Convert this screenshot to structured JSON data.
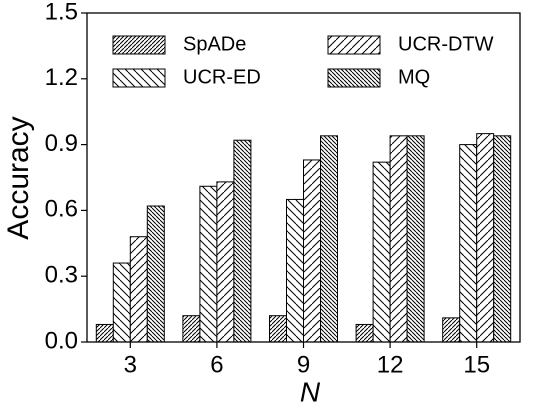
{
  "chart_data": {
    "type": "bar",
    "xlabel": "N",
    "ylabel": "Accuracy",
    "categories": [
      "3",
      "6",
      "9",
      "12",
      "15"
    ],
    "series": [
      {
        "name": "SpADe",
        "color": "#000000",
        "hatch": "////",
        "values": [
          0.08,
          0.12,
          0.12,
          0.08,
          0.11
        ]
      },
      {
        "name": "UCR-ED",
        "color": "#000000",
        "hatch": "\\\\",
        "values": [
          0.36,
          0.71,
          0.65,
          0.82,
          0.9
        ]
      },
      {
        "name": "UCR-DTW",
        "color": "#000000",
        "hatch": "//",
        "values": [
          0.48,
          0.73,
          0.83,
          0.94,
          0.95
        ]
      },
      {
        "name": "MQ",
        "color": "#000000",
        "hatch": "\\\\\\\\",
        "values": [
          0.62,
          0.92,
          0.94,
          0.94,
          0.94
        ]
      }
    ],
    "ylim": [
      0,
      1.5
    ],
    "yticks": [
      {
        "value": 0,
        "label": "0.0"
      },
      0.3,
      0.6,
      0.9,
      1.2,
      1.5
    ],
    "legend": "upper center"
  }
}
